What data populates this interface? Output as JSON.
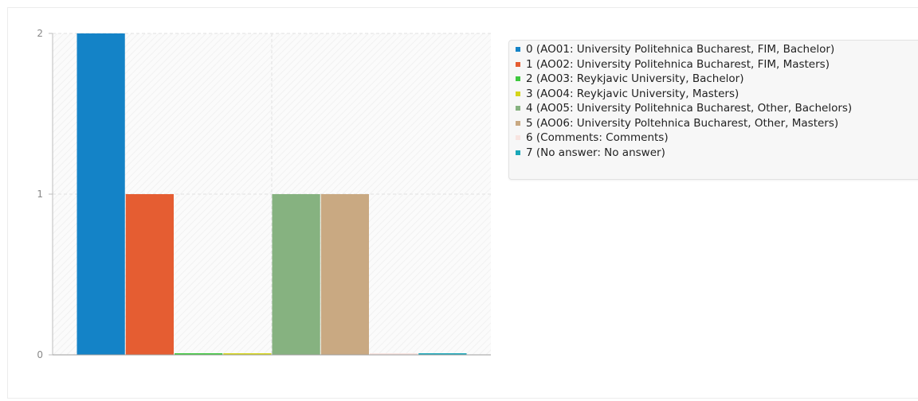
{
  "chart_data": {
    "type": "bar",
    "title": "",
    "xlabel": "",
    "ylabel": "",
    "ylim": [
      0,
      2
    ],
    "yticks": [
      "0",
      "1",
      "2"
    ],
    "grid": true,
    "legend_position": "right",
    "series": [
      {
        "name": "0 (AO01: University Politehnica Bucharest, FIM, Bachelor)",
        "value": 2,
        "color": "#1483c7"
      },
      {
        "name": "1 (AO02: University Politehnica Bucharest, FIM, Masters)",
        "value": 1,
        "color": "#e55d32"
      },
      {
        "name": "2 (AO03: Reykjavic University, Bachelor)",
        "value": 0,
        "color": "#3ec83e"
      },
      {
        "name": "3 (AO04: Reykjavic University, Masters)",
        "value": 0,
        "color": "#d5d51a"
      },
      {
        "name": "4 (AO05: University Politehnica Bucharest, Other, Bachelors)",
        "value": 1,
        "color": "#86b280"
      },
      {
        "name": "5 (AO06: University Poltehnica Bucharest, Other, Masters)",
        "value": 1,
        "color": "#c9a982"
      },
      {
        "name": "6 (Comments: Comments)",
        "value": 0,
        "color": "#f8e4e0"
      },
      {
        "name": "7 (No answer: No answer)",
        "value": 0,
        "color": "#1aa7b8"
      }
    ]
  }
}
